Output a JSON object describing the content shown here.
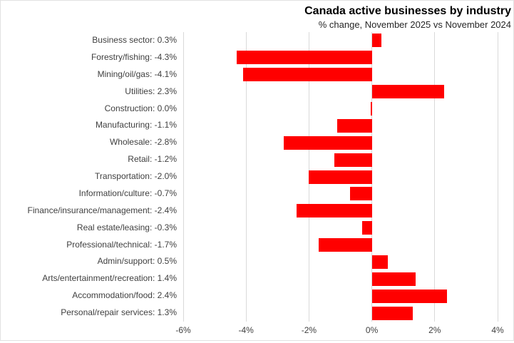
{
  "header": {
    "title": "Canada active businesses by industry",
    "subtitle": "% change, November 2025 vs November 2024"
  },
  "colors": {
    "bar": "#FF0000",
    "gridline": "#D9D9D9",
    "label_text": "#404040",
    "axis_text": "#404040",
    "title_text": "#000000",
    "frame": "#E2E2E2",
    "background": "#FFFFFF"
  },
  "chart_data": {
    "type": "bar",
    "orientation": "horizontal",
    "title": "Canada active businesses by industry",
    "subtitle": "% change, November 2025 vs November 2024",
    "categories": [
      "Business sector",
      "Forestry/fishing",
      "Mining/oil/gas",
      "Utilities",
      "Construction",
      "Manufacturing",
      "Wholesale",
      "Retail",
      "Transportation",
      "Information/culture",
      "Finance/insurance/management",
      "Real estate/leasing",
      "Professional/technical",
      "Admin/support",
      "Arts/entertainment/recreation",
      "Accommodation/food",
      "Personal/repair services"
    ],
    "values": [
      0.3,
      -4.3,
      -4.1,
      2.3,
      0.0,
      -1.1,
      -2.8,
      -1.2,
      -2.0,
      -0.7,
      -2.4,
      -0.3,
      -1.7,
      0.5,
      1.4,
      2.4,
      1.3
    ],
    "row_labels": [
      "Business sector: 0.3%",
      "Forestry/fishing: -4.3%",
      "Mining/oil/gas: -4.1%",
      "Utilities: 2.3%",
      "Construction: 0.0%",
      "Manufacturing: -1.1%",
      "Wholesale: -2.8%",
      "Retail: -1.2%",
      "Transportation: -2.0%",
      "Information/culture: -0.7%",
      "Finance/insurance/management: -2.4%",
      "Real estate/leasing: -0.3%",
      "Professional/technical: -1.7%",
      "Admin/support: 0.5%",
      "Arts/entertainment/recreation: 1.4%",
      "Accommodation/food: 2.4%",
      "Personal/repair services: 1.3%"
    ],
    "x_axis": {
      "min": -6,
      "max": 4,
      "tick_step": 2,
      "tick_values": [
        -6,
        -4,
        -2,
        0,
        2,
        4
      ],
      "tick_labels": [
        "-6%",
        "-4%",
        "-2%",
        "0%",
        "2%",
        "4%"
      ]
    },
    "grid": true,
    "legend": false,
    "bar_color": "#FF0000"
  }
}
